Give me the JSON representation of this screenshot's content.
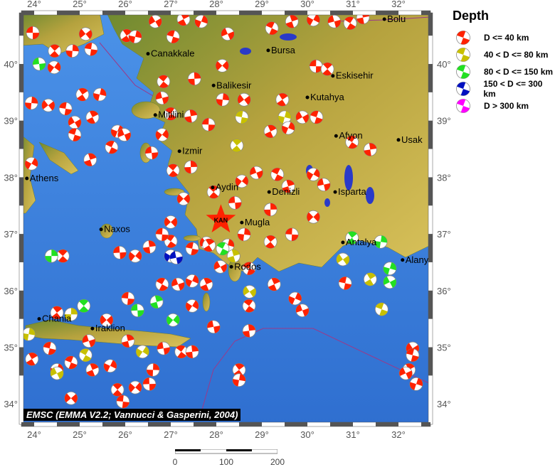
{
  "legend": {
    "title": "Depth",
    "items": [
      {
        "label": "D <= 40 km",
        "color": "#ff2200"
      },
      {
        "label": "40 < D <= 80 km",
        "color": "#c8c000"
      },
      {
        "label": "80 < D <= 150 km",
        "color": "#22e022"
      },
      {
        "label": "150 < D <= 300 km",
        "color": "#0010c0"
      },
      {
        "label": "D > 300 km",
        "color": "#ff00ff"
      }
    ]
  },
  "credit": "EMSC (EMMA V2.2; Vannucci & Gasperini, 2004)",
  "scale_bar": {
    "labels": [
      "0",
      "100",
      "200"
    ]
  },
  "axes": {
    "lon_ticks": [
      "24°",
      "25°",
      "26°",
      "27°",
      "28°",
      "29°",
      "30°",
      "31°",
      "32°"
    ],
    "lat_ticks": [
      "40°",
      "39°",
      "38°",
      "37°",
      "36°",
      "35°",
      "34°"
    ],
    "lon_range": [
      23.7,
      32.7
    ],
    "lat_range": [
      33.6,
      40.9
    ]
  },
  "colors": {
    "sea": "#3a7ddc",
    "land": "#b9a63c",
    "lowland": "#5a7a28",
    "lake": "#2a3ac8",
    "fault": "#9a3a8a",
    "star": "#ff2200"
  },
  "epicenter": {
    "label": "KAN",
    "lon": 28.1,
    "lat": 37.25
  },
  "cities": [
    {
      "name": "Athens",
      "lon": 23.84,
      "lat": 37.98
    },
    {
      "name": "Canakkale",
      "lon": 26.5,
      "lat": 40.18
    },
    {
      "name": "Bursa",
      "lon": 29.14,
      "lat": 40.24
    },
    {
      "name": "Bolu",
      "lon": 31.69,
      "lat": 40.79
    },
    {
      "name": "Balikesir",
      "lon": 27.94,
      "lat": 39.62
    },
    {
      "name": "Eskisehir",
      "lon": 30.56,
      "lat": 39.79
    },
    {
      "name": "Kutahya",
      "lon": 30.0,
      "lat": 39.41
    },
    {
      "name": "Mitilini",
      "lon": 26.66,
      "lat": 39.1
    },
    {
      "name": "Izmir",
      "lon": 27.19,
      "lat": 38.46
    },
    {
      "name": "Afyon",
      "lon": 30.63,
      "lat": 38.73
    },
    {
      "name": "Usak",
      "lon": 32.0,
      "lat": 38.66
    },
    {
      "name": "Aydin",
      "lon": 27.92,
      "lat": 37.82
    },
    {
      "name": "Denizli",
      "lon": 29.16,
      "lat": 37.74
    },
    {
      "name": "Isparta",
      "lon": 30.61,
      "lat": 37.74
    },
    {
      "name": "Mugla",
      "lon": 28.56,
      "lat": 37.2
    },
    {
      "name": "Naxos",
      "lon": 25.47,
      "lat": 37.08
    },
    {
      "name": "Antalya",
      "lon": 30.78,
      "lat": 36.85
    },
    {
      "name": "Alanya",
      "lon": 32.09,
      "lat": 36.54
    },
    {
      "name": "Rodos",
      "lon": 28.33,
      "lat": 36.42
    },
    {
      "name": "Chania",
      "lon": 24.11,
      "lat": 35.5
    },
    {
      "name": "Iraklion",
      "lon": 25.28,
      "lat": 35.33
    }
  ],
  "events": [
    [
      23.97,
      40.55,
      0
    ],
    [
      24.45,
      40.23,
      0
    ],
    [
      24.84,
      40.23,
      0
    ],
    [
      25.13,
      40.53,
      0
    ],
    [
      25.25,
      40.26,
      0
    ],
    [
      26.03,
      40.5,
      0
    ],
    [
      26.22,
      40.48,
      0
    ],
    [
      26.66,
      40.75,
      0
    ],
    [
      27.05,
      40.48,
      0
    ],
    [
      27.28,
      40.79,
      0
    ],
    [
      27.67,
      40.75,
      0
    ],
    [
      28.25,
      40.53,
      0
    ],
    [
      29.22,
      40.63,
      0
    ],
    [
      29.66,
      40.75,
      0
    ],
    [
      30.13,
      40.78,
      0
    ],
    [
      30.59,
      40.75,
      0
    ],
    [
      30.94,
      40.72,
      0
    ],
    [
      31.22,
      40.82,
      0
    ],
    [
      24.44,
      39.94,
      0
    ],
    [
      24.11,
      40.0,
      2
    ],
    [
      26.84,
      39.69,
      0
    ],
    [
      27.52,
      39.74,
      0
    ],
    [
      28.13,
      39.97,
      0
    ],
    [
      30.19,
      39.96,
      0
    ],
    [
      30.44,
      39.91,
      0
    ],
    [
      23.94,
      39.31,
      0
    ],
    [
      24.31,
      39.27,
      0
    ],
    [
      24.69,
      39.21,
      0
    ],
    [
      25.06,
      39.46,
      0
    ],
    [
      25.44,
      39.46,
      0
    ],
    [
      24.89,
      38.97,
      0
    ],
    [
      24.89,
      38.75,
      0
    ],
    [
      25.28,
      39.06,
      0
    ],
    [
      25.83,
      38.81,
      0
    ],
    [
      25.98,
      38.75,
      0
    ],
    [
      25.7,
      38.53,
      0
    ],
    [
      25.23,
      38.31,
      0
    ],
    [
      23.94,
      38.24,
      0
    ],
    [
      26.81,
      39.4,
      0
    ],
    [
      27.0,
      39.12,
      0
    ],
    [
      27.44,
      39.08,
      0
    ],
    [
      26.81,
      38.75,
      0
    ],
    [
      26.58,
      38.43,
      0
    ],
    [
      27.05,
      38.12,
      0
    ],
    [
      27.44,
      38.18,
      0
    ],
    [
      27.28,
      37.62,
      0
    ],
    [
      27.83,
      38.93,
      0
    ],
    [
      28.45,
      38.56,
      1
    ],
    [
      28.14,
      39.37,
      0
    ],
    [
      28.61,
      39.37,
      0
    ],
    [
      28.56,
      39.06,
      1
    ],
    [
      29.45,
      39.37,
      0
    ],
    [
      29.5,
      39.06,
      1
    ],
    [
      29.89,
      39.06,
      0
    ],
    [
      30.2,
      39.06,
      0
    ],
    [
      29.19,
      38.81,
      0
    ],
    [
      29.58,
      38.87,
      0
    ],
    [
      28.88,
      38.08,
      0
    ],
    [
      29.34,
      38.05,
      0
    ],
    [
      29.58,
      37.84,
      0
    ],
    [
      30.13,
      38.05,
      0
    ],
    [
      30.36,
      37.87,
      0
    ],
    [
      30.98,
      38.62,
      0
    ],
    [
      31.38,
      38.49,
      0
    ],
    [
      28.56,
      37.93,
      0
    ],
    [
      28.41,
      37.55,
      0
    ],
    [
      27.94,
      37.74,
      0
    ],
    [
      29.19,
      37.43,
      0
    ],
    [
      30.13,
      37.3,
      0
    ],
    [
      29.66,
      36.99,
      0
    ],
    [
      29.19,
      36.86,
      0
    ],
    [
      28.61,
      36.99,
      0
    ],
    [
      27.78,
      36.84,
      0
    ],
    [
      27.47,
      36.74,
      0
    ],
    [
      27.84,
      36.8,
      0
    ],
    [
      28.25,
      36.8,
      0
    ],
    [
      28.09,
      36.42,
      0
    ],
    [
      28.72,
      36.39,
      0
    ],
    [
      29.27,
      36.11,
      0
    ],
    [
      29.73,
      35.86,
      0
    ],
    [
      29.89,
      35.65,
      0
    ],
    [
      28.14,
      36.74,
      2
    ],
    [
      28.38,
      36.61,
      1
    ],
    [
      27.0,
      36.61,
      3
    ],
    [
      27.12,
      36.58,
      3
    ],
    [
      27.0,
      36.87,
      0
    ],
    [
      26.53,
      36.77,
      0
    ],
    [
      26.22,
      36.61,
      0
    ],
    [
      25.88,
      36.67,
      0
    ],
    [
      24.63,
      36.61,
      0
    ],
    [
      24.38,
      36.61,
      2
    ],
    [
      27.0,
      37.21,
      0
    ],
    [
      26.81,
      36.99,
      0
    ],
    [
      30.98,
      36.93,
      2
    ],
    [
      31.61,
      36.86,
      2
    ],
    [
      30.78,
      36.55,
      1
    ],
    [
      30.83,
      36.13,
      0
    ],
    [
      31.38,
      36.2,
      1
    ],
    [
      31.81,
      36.39,
      2
    ],
    [
      31.81,
      36.15,
      2
    ],
    [
      31.63,
      35.67,
      1
    ],
    [
      27.78,
      36.11,
      0
    ],
    [
      27.47,
      36.17,
      0
    ],
    [
      27.16,
      36.11,
      0
    ],
    [
      26.81,
      36.11,
      0
    ],
    [
      26.69,
      35.8,
      2
    ],
    [
      27.47,
      35.73,
      0
    ],
    [
      27.94,
      35.36,
      0
    ],
    [
      28.72,
      35.73,
      0
    ],
    [
      28.72,
      35.29,
      0
    ],
    [
      27.05,
      35.48,
      2
    ],
    [
      26.27,
      35.65,
      2
    ],
    [
      25.09,
      35.73,
      2
    ],
    [
      24.81,
      35.58,
      1
    ],
    [
      25.59,
      35.48,
      0
    ],
    [
      26.06,
      35.86,
      0
    ],
    [
      24.5,
      35.61,
      0
    ],
    [
      23.88,
      35.23,
      1
    ],
    [
      28.73,
      35.98,
      1
    ],
    [
      24.34,
      34.98,
      0
    ],
    [
      23.95,
      34.79,
      0
    ],
    [
      24.5,
      34.6,
      0
    ],
    [
      24.5,
      34.54,
      1
    ],
    [
      24.81,
      34.73,
      0
    ],
    [
      25.28,
      34.6,
      0
    ],
    [
      25.67,
      34.67,
      0
    ],
    [
      25.2,
      35.11,
      0
    ],
    [
      25.13,
      34.86,
      1
    ],
    [
      26.06,
      35.11,
      0
    ],
    [
      26.38,
      34.92,
      1
    ],
    [
      26.84,
      34.98,
      0
    ],
    [
      27.23,
      34.92,
      0
    ],
    [
      27.47,
      34.92,
      0
    ],
    [
      26.22,
      34.29,
      0
    ],
    [
      26.53,
      34.35,
      0
    ],
    [
      25.83,
      34.25,
      0
    ],
    [
      26.61,
      34.6,
      0
    ],
    [
      24.81,
      34.1,
      0
    ],
    [
      25.95,
      34.04,
      0
    ],
    [
      28.5,
      34.6,
      0
    ],
    [
      28.5,
      34.42,
      0
    ],
    [
      32.31,
      34.98,
      0
    ],
    [
      32.31,
      34.86,
      0
    ],
    [
      32.23,
      34.6,
      0
    ],
    [
      32.39,
      34.35,
      0
    ],
    [
      32.16,
      34.54,
      0
    ]
  ]
}
